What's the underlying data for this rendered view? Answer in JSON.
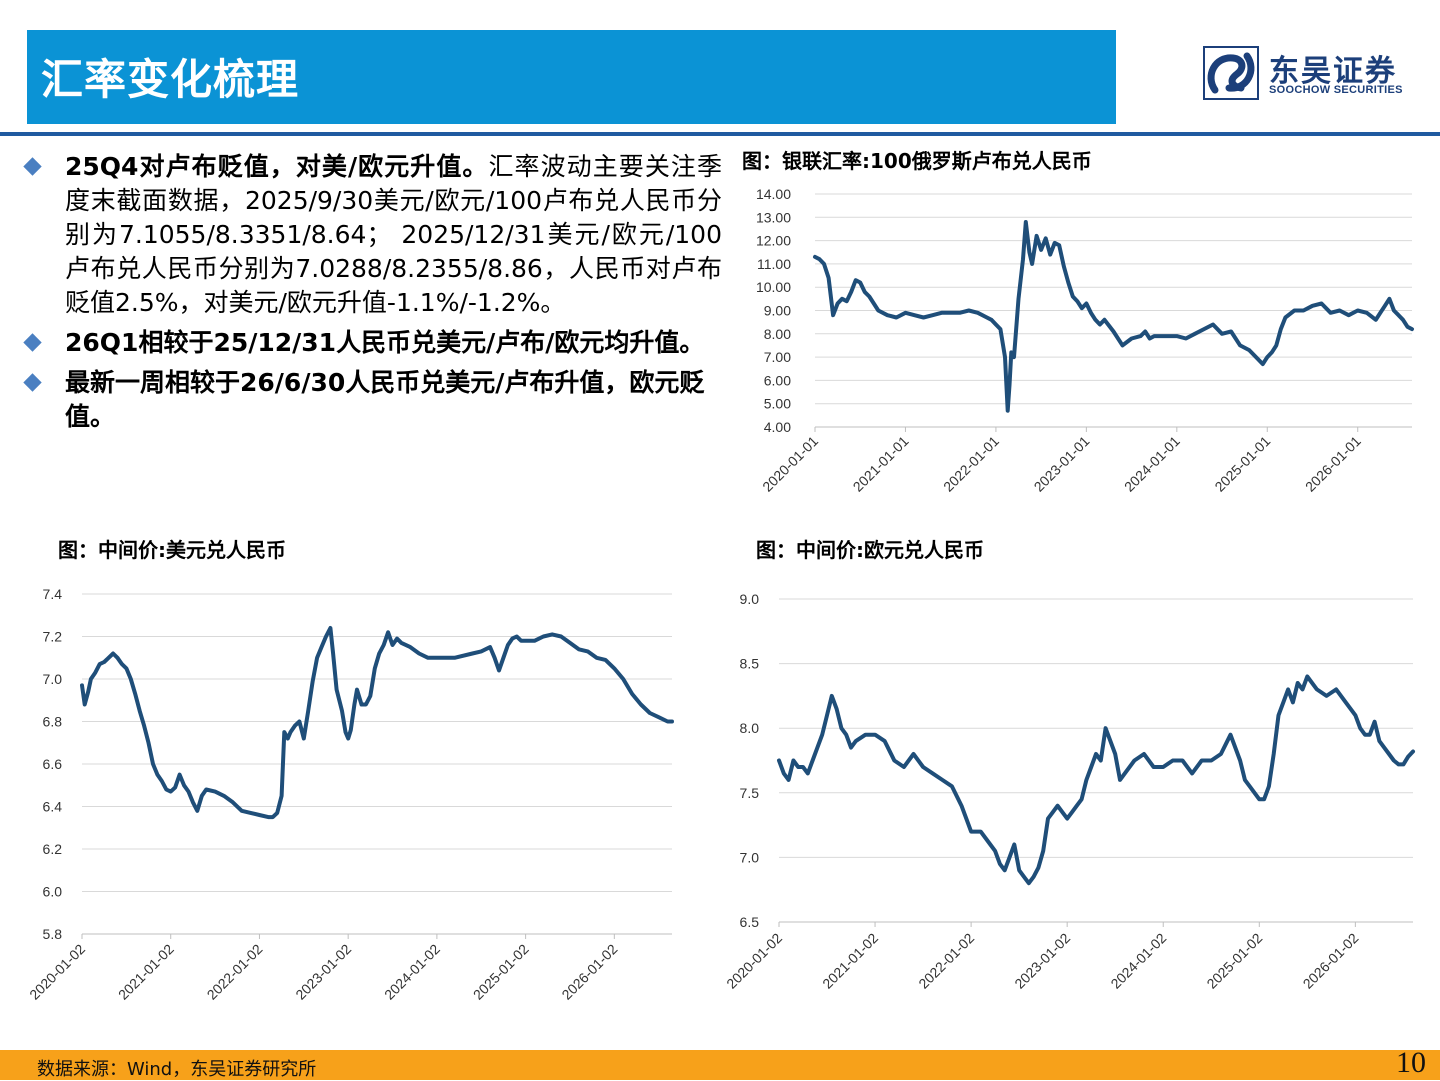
{
  "header": {
    "title": "汇率变化梳理",
    "logo_cn": "东吴证券",
    "logo_en": "SOOCHOW SECURITIES",
    "logo_icon": "soochow-logo-icon"
  },
  "bullets": [
    {
      "bold": "25Q4对卢布贬值，对美/欧元升值。",
      "text": "汇率波动主要关注季度末截面数据，2025/9/30美元/欧元/100卢布兑人民币分别为7.1055/8.3351/8.64； 2025/12/31美元/欧元/100卢布兑人民币分别为7.0288/8.2355/8.86，人民币对卢布贬值2.5%，对美元/欧元升值-1.1%/-1.2%。"
    },
    {
      "bold": "26Q1相较于25/12/31人民币兑美元/卢布/欧元均升值。",
      "text": ""
    },
    {
      "bold": "最新一周相较于26/6/30人民币兑美元/卢布升值，欧元贬值。",
      "text": ""
    }
  ],
  "charts": {
    "rub": {
      "title": "图：银联汇率:100俄罗斯卢布兑人民币"
    },
    "usd": {
      "title": "图：中间价:美元兑人民币"
    },
    "eur": {
      "title": "图：中间价:欧元兑人民币"
    }
  },
  "chart_data": [
    {
      "id": "rub",
      "type": "line",
      "title": "图：银联汇率:100俄罗斯卢布兑人民币",
      "line_color": "#1f4e79",
      "ylim": [
        4.0,
        14.0
      ],
      "ytick_labels": [
        "4.00",
        "5.00",
        "6.00",
        "7.00",
        "8.00",
        "9.00",
        "10.00",
        "11.00",
        "12.00",
        "13.00",
        "14.00"
      ],
      "xtick_labels": [
        "2020-01-01",
        "2021-01-01",
        "2022-01-01",
        "2023-01-01",
        "2024-01-01",
        "2025-01-01",
        "2026-01-01"
      ],
      "x_start": 2020.0,
      "x_end": 2026.6,
      "grid": true,
      "series": [
        {
          "x": [
            2020.0,
            2020.05,
            2020.1,
            2020.15,
            2020.2,
            2020.25,
            2020.3,
            2020.35,
            2020.4,
            2020.45,
            2020.5,
            2020.55,
            2020.6,
            2020.65,
            2020.7,
            2020.8,
            2020.9,
            2021.0,
            2021.1,
            2021.2,
            2021.3,
            2021.4,
            2021.5,
            2021.6,
            2021.7,
            2021.8,
            2021.9,
            2021.95,
            2022.0,
            2022.05,
            2022.1,
            2022.13,
            2022.15,
            2022.17,
            2022.2,
            2022.25,
            2022.3,
            2022.33,
            2022.37,
            2022.4,
            2022.45,
            2022.5,
            2022.55,
            2022.6,
            2022.65,
            2022.7,
            2022.75,
            2022.8,
            2022.85,
            2022.9,
            2022.95,
            2023.0,
            2023.05,
            2023.1,
            2023.15,
            2023.2,
            2023.3,
            2023.4,
            2023.5,
            2023.6,
            2023.65,
            2023.7,
            2023.75,
            2023.8,
            2023.9,
            2024.0,
            2024.1,
            2024.2,
            2024.3,
            2024.4,
            2024.5,
            2024.6,
            2024.7,
            2024.8,
            2024.9,
            2024.95,
            2025.0,
            2025.05,
            2025.1,
            2025.15,
            2025.2,
            2025.3,
            2025.4,
            2025.5,
            2025.6,
            2025.7,
            2025.8,
            2025.9,
            2026.0,
            2026.1,
            2026.2,
            2026.25,
            2026.3,
            2026.35,
            2026.4,
            2026.5,
            2026.55,
            2026.6
          ],
          "y": [
            11.3,
            11.2,
            11.0,
            10.4,
            8.8,
            9.3,
            9.5,
            9.4,
            9.8,
            10.3,
            10.2,
            9.8,
            9.6,
            9.3,
            9.0,
            8.8,
            8.7,
            8.9,
            8.8,
            8.7,
            8.8,
            8.9,
            8.9,
            8.9,
            9.0,
            8.9,
            8.7,
            8.6,
            8.4,
            8.2,
            7.0,
            4.7,
            5.8,
            7.2,
            7.0,
            9.5,
            11.2,
            12.8,
            11.5,
            11.0,
            12.2,
            11.6,
            12.1,
            11.4,
            11.9,
            11.8,
            10.9,
            10.2,
            9.6,
            9.4,
            9.1,
            9.3,
            8.9,
            8.6,
            8.4,
            8.6,
            8.1,
            7.5,
            7.8,
            7.9,
            8.1,
            7.8,
            7.9,
            7.9,
            7.9,
            7.9,
            7.8,
            8.0,
            8.2,
            8.4,
            8.0,
            8.1,
            7.5,
            7.3,
            6.9,
            6.7,
            7.0,
            7.2,
            7.5,
            8.2,
            8.7,
            9.0,
            9.0,
            9.2,
            9.3,
            8.9,
            9.0,
            8.8,
            9.0,
            8.9,
            8.6,
            8.9,
            9.2,
            9.5,
            9.0,
            8.6,
            8.3,
            8.2
          ]
        }
      ]
    },
    {
      "id": "usd",
      "type": "line",
      "title": "图：中间价:美元兑人民币",
      "line_color": "#1f4e79",
      "ylim": [
        5.8,
        7.4
      ],
      "ytick_labels": [
        "5.8",
        "6.0",
        "6.2",
        "6.4",
        "6.6",
        "6.8",
        "7.0",
        "7.2",
        "7.4"
      ],
      "xtick_labels": [
        "2020-01-02",
        "2021-01-02",
        "2022-01-02",
        "2023-01-02",
        "2024-01-02",
        "2025-01-02",
        "2026-01-02"
      ],
      "x_start": 2020.0,
      "x_end": 2026.65,
      "grid": true,
      "series": [
        {
          "x": [
            2020.0,
            2020.03,
            2020.07,
            2020.1,
            2020.15,
            2020.2,
            2020.25,
            2020.3,
            2020.35,
            2020.4,
            2020.45,
            2020.5,
            2020.55,
            2020.6,
            2020.65,
            2020.7,
            2020.75,
            2020.8,
            2020.85,
            2020.9,
            2020.95,
            2021.0,
            2021.05,
            2021.1,
            2021.15,
            2021.2,
            2021.25,
            2021.3,
            2021.35,
            2021.4,
            2021.5,
            2021.6,
            2021.7,
            2021.8,
            2021.9,
            2022.0,
            2022.1,
            2022.15,
            2022.2,
            2022.25,
            2022.28,
            2022.32,
            2022.35,
            2022.4,
            2022.45,
            2022.5,
            2022.55,
            2022.6,
            2022.65,
            2022.7,
            2022.75,
            2022.8,
            2022.83,
            2022.87,
            2022.9,
            2022.93,
            2022.97,
            2023.0,
            2023.03,
            2023.07,
            2023.1,
            2023.15,
            2023.2,
            2023.25,
            2023.3,
            2023.35,
            2023.4,
            2023.45,
            2023.5,
            2023.55,
            2023.6,
            2023.7,
            2023.8,
            2023.9,
            2024.0,
            2024.2,
            2024.4,
            2024.5,
            2024.6,
            2024.65,
            2024.7,
            2024.75,
            2024.8,
            2024.85,
            2024.9,
            2024.95,
            2025.0,
            2025.1,
            2025.2,
            2025.3,
            2025.4,
            2025.5,
            2025.6,
            2025.7,
            2025.8,
            2025.9,
            2026.0,
            2026.1,
            2026.2,
            2026.3,
            2026.4,
            2026.5,
            2026.6,
            2026.65
          ],
          "y": [
            6.97,
            6.88,
            6.94,
            7.0,
            7.03,
            7.07,
            7.08,
            7.1,
            7.12,
            7.1,
            7.07,
            7.05,
            7.0,
            6.93,
            6.85,
            6.78,
            6.7,
            6.6,
            6.55,
            6.52,
            6.48,
            6.47,
            6.49,
            6.55,
            6.5,
            6.47,
            6.42,
            6.38,
            6.45,
            6.48,
            6.47,
            6.45,
            6.42,
            6.38,
            6.37,
            6.36,
            6.35,
            6.35,
            6.37,
            6.45,
            6.75,
            6.72,
            6.75,
            6.78,
            6.8,
            6.72,
            6.85,
            6.99,
            7.1,
            7.15,
            7.2,
            7.24,
            7.12,
            6.95,
            6.9,
            6.85,
            6.75,
            6.72,
            6.76,
            6.88,
            6.95,
            6.88,
            6.88,
            6.92,
            7.05,
            7.12,
            7.16,
            7.22,
            7.16,
            7.19,
            7.17,
            7.15,
            7.12,
            7.1,
            7.1,
            7.1,
            7.12,
            7.13,
            7.15,
            7.1,
            7.04,
            7.1,
            7.16,
            7.19,
            7.2,
            7.18,
            7.18,
            7.18,
            7.2,
            7.21,
            7.2,
            7.17,
            7.14,
            7.13,
            7.1,
            7.09,
            7.05,
            7.0,
            6.93,
            6.88,
            6.84,
            6.82,
            6.8,
            6.8
          ]
        }
      ]
    },
    {
      "id": "eur",
      "type": "line",
      "title": "图：中间价:欧元兑人民币",
      "line_color": "#1f4e79",
      "ylim": [
        6.5,
        9.0
      ],
      "ytick_labels": [
        "6.5",
        "7.0",
        "7.5",
        "8.0",
        "8.5",
        "9.0"
      ],
      "xtick_labels": [
        "2020-01-02",
        "2021-01-02",
        "2022-01-02",
        "2023-01-02",
        "2024-01-02",
        "2025-01-02",
        "2026-01-02"
      ],
      "x_start": 2020.0,
      "x_end": 2026.6,
      "grid": true,
      "series": [
        {
          "x": [
            2020.0,
            2020.05,
            2020.1,
            2020.15,
            2020.2,
            2020.25,
            2020.3,
            2020.35,
            2020.4,
            2020.45,
            2020.5,
            2020.55,
            2020.6,
            2020.65,
            2020.7,
            2020.75,
            2020.8,
            2020.9,
            2021.0,
            2021.1,
            2021.2,
            2021.3,
            2021.4,
            2021.5,
            2021.6,
            2021.7,
            2021.8,
            2021.9,
            2022.0,
            2022.1,
            2022.2,
            2022.25,
            2022.3,
            2022.35,
            2022.4,
            2022.45,
            2022.5,
            2022.55,
            2022.6,
            2022.65,
            2022.7,
            2022.75,
            2022.8,
            2022.85,
            2022.9,
            2022.95,
            2023.0,
            2023.05,
            2023.1,
            2023.15,
            2023.2,
            2023.25,
            2023.3,
            2023.35,
            2023.4,
            2023.45,
            2023.5,
            2023.55,
            2023.6,
            2023.7,
            2023.8,
            2023.9,
            2024.0,
            2024.1,
            2024.2,
            2024.3,
            2024.4,
            2024.5,
            2024.6,
            2024.7,
            2024.8,
            2024.85,
            2024.9,
            2024.95,
            2025.0,
            2025.05,
            2025.1,
            2025.15,
            2025.2,
            2025.25,
            2025.3,
            2025.35,
            2025.4,
            2025.45,
            2025.5,
            2025.6,
            2025.7,
            2025.8,
            2025.9,
            2026.0,
            2026.05,
            2026.1,
            2026.15,
            2026.2,
            2026.25,
            2026.3,
            2026.35,
            2026.4,
            2026.45,
            2026.5,
            2026.55,
            2026.6
          ],
          "y": [
            7.75,
            7.65,
            7.6,
            7.75,
            7.7,
            7.7,
            7.65,
            7.75,
            7.85,
            7.95,
            8.1,
            8.25,
            8.15,
            8.0,
            7.95,
            7.85,
            7.9,
            7.95,
            7.95,
            7.9,
            7.75,
            7.7,
            7.8,
            7.7,
            7.65,
            7.6,
            7.55,
            7.4,
            7.2,
            7.2,
            7.1,
            7.05,
            6.95,
            6.9,
            7.0,
            7.1,
            6.9,
            6.85,
            6.8,
            6.85,
            6.92,
            7.05,
            7.3,
            7.35,
            7.4,
            7.35,
            7.3,
            7.35,
            7.4,
            7.45,
            7.6,
            7.7,
            7.8,
            7.75,
            8.0,
            7.9,
            7.8,
            7.6,
            7.65,
            7.75,
            7.8,
            7.7,
            7.7,
            7.75,
            7.75,
            7.65,
            7.75,
            7.75,
            7.8,
            7.95,
            7.75,
            7.6,
            7.55,
            7.5,
            7.45,
            7.45,
            7.55,
            7.8,
            8.1,
            8.2,
            8.3,
            8.2,
            8.35,
            8.3,
            8.4,
            8.3,
            8.25,
            8.3,
            8.2,
            8.1,
            8.0,
            7.95,
            7.95,
            8.05,
            7.9,
            7.85,
            7.8,
            7.75,
            7.72,
            7.72,
            7.78,
            7.82
          ]
        }
      ]
    }
  ],
  "footer": {
    "source": "数据来源：Wind，东吴证券研究所",
    "page_number": "10"
  }
}
